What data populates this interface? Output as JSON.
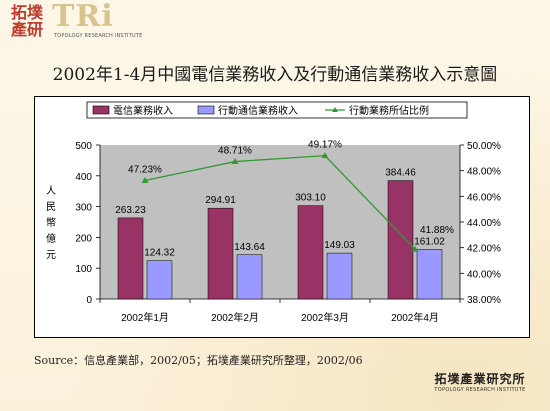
{
  "header": {
    "logo_cn_line1": "拓墣",
    "logo_cn_line2": "產研",
    "logo_tri": "TRi",
    "logo_sub": "TOPOLOGY RESEARCH INSTITUTE"
  },
  "title": "2002年1-4月中國電信業務收入及行動通信業務收入示意圖",
  "source": "Source：信息產業部，2002/05；拓墣產業研究所整理，2002/06",
  "footer": {
    "logo_cn": "拓墣產業研究所",
    "logo_en": "TOPOLOGY RESEARCH INSTITUTE"
  },
  "colors": {
    "bar1": "#993366",
    "bar2": "#9999ff",
    "line": "#339933",
    "plot_bg": "#c0c0c0"
  },
  "chart_data": {
    "type": "bar",
    "categories": [
      "2002年1月",
      "2002年2月",
      "2002年3月",
      "2002年4月"
    ],
    "ylabel": "人民幣億元",
    "ylim": [
      0,
      500
    ],
    "yticks": [
      "0",
      "100",
      "200",
      "300",
      "400",
      "500"
    ],
    "y2lim": [
      38,
      50
    ],
    "y2ticks": [
      "38.00%",
      "40.00%",
      "42.00%",
      "44.00%",
      "46.00%",
      "48.00%",
      "50.00%"
    ],
    "legend_position": "top",
    "grid": false,
    "series": [
      {
        "name": "電信業務收入",
        "type": "bar",
        "values": [
          263.23,
          294.91,
          303.1,
          384.46
        ],
        "labels": [
          "263.23",
          "294.91",
          "303.10",
          "384.46"
        ]
      },
      {
        "name": "行動通信業務收入",
        "type": "bar",
        "values": [
          124.32,
          143.64,
          149.03,
          161.02
        ],
        "labels": [
          "124.32",
          "143.64",
          "149.03",
          "161.02"
        ]
      },
      {
        "name": "行動業務所佔比例",
        "type": "line",
        "axis": "secondary",
        "values": [
          47.23,
          48.71,
          49.17,
          41.88
        ],
        "labels": [
          "47.23%",
          "48.71%",
          "49.17%",
          "41.88%"
        ]
      }
    ]
  }
}
